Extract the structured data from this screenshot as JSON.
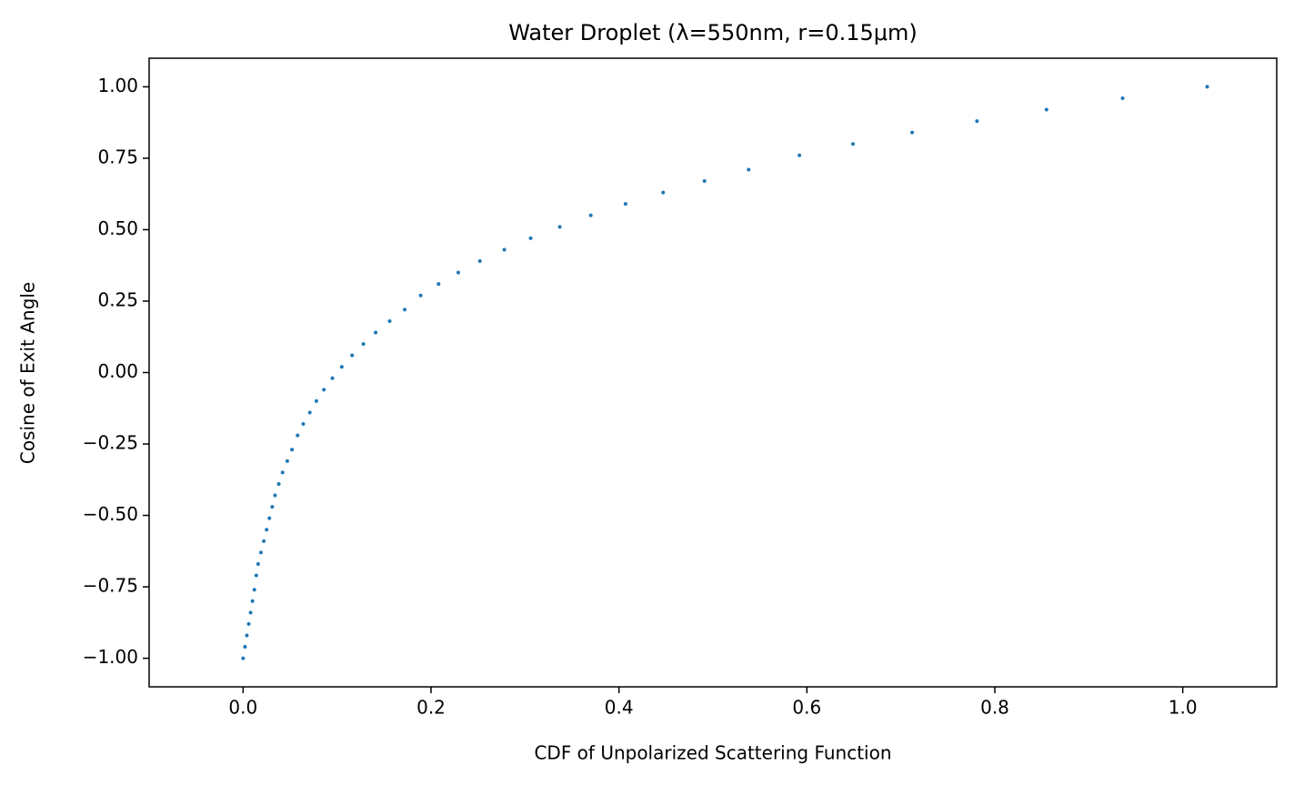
{
  "chart_data": {
    "type": "scatter",
    "title": "Water Droplet (λ=550nm, r=0.15μm)",
    "x_label": "CDF of Unpolarized Scattering Function",
    "y_label": "Cosine of Exit Angle",
    "series": [
      {
        "color": "#1f77b4",
        "x": [
          0.0,
          0.002,
          0.004,
          0.006,
          0.008,
          0.01,
          0.012,
          0.014,
          0.016,
          0.019,
          0.022,
          0.025,
          0.028,
          0.031,
          0.034,
          0.038,
          0.042,
          0.047,
          0.052,
          0.058,
          0.064,
          0.071,
          0.078,
          0.086,
          0.095,
          0.105,
          0.116,
          0.128,
          0.141,
          0.156,
          0.172,
          0.189,
          0.208,
          0.229,
          0.252,
          0.278,
          0.306,
          0.337,
          0.37,
          0.407,
          0.447,
          0.491,
          0.538,
          0.592,
          0.649,
          0.712,
          0.781,
          0.855,
          0.936,
          1.026
        ],
        "values": [
          -1.0,
          -0.96,
          -0.92,
          -0.88,
          -0.84,
          -0.8,
          -0.76,
          -0.71,
          -0.67,
          -0.63,
          -0.59,
          -0.55,
          -0.51,
          -0.47,
          -0.43,
          -0.39,
          -0.35,
          -0.31,
          -0.27,
          -0.22,
          -0.18,
          -0.14,
          -0.1,
          -0.06,
          -0.02,
          0.02,
          0.06,
          0.1,
          0.14,
          0.18,
          0.22,
          0.27,
          0.31,
          0.35,
          0.39,
          0.43,
          0.47,
          0.51,
          0.55,
          0.59,
          0.63,
          0.67,
          0.71,
          0.76,
          0.8,
          0.84,
          0.88,
          0.92,
          0.96,
          1.0
        ]
      }
    ],
    "xlim": [
      -0.1,
      1.1
    ],
    "ylim": [
      -1.1,
      1.1
    ],
    "xticks": [
      {
        "value": 0,
        "label": "0.0"
      },
      0.2,
      0.4,
      0.6,
      0.8,
      {
        "value": 1,
        "label": "1.0"
      }
    ],
    "yticks": [
      {
        "value": -1,
        "label": "−1.00"
      },
      {
        "value": -0.75,
        "label": "−0.75"
      },
      {
        "value": -0.5,
        "label": "−0.50"
      },
      {
        "value": -0.25,
        "label": "−0.25"
      },
      {
        "value": 0,
        "label": "0.00"
      },
      {
        "value": 0.25,
        "label": "0.25"
      },
      {
        "value": 0.5,
        "label": "0.50"
      },
      {
        "value": 0.75,
        "label": "0.75"
      },
      {
        "value": 1,
        "label": "1.00"
      }
    ],
    "grid": false
  }
}
